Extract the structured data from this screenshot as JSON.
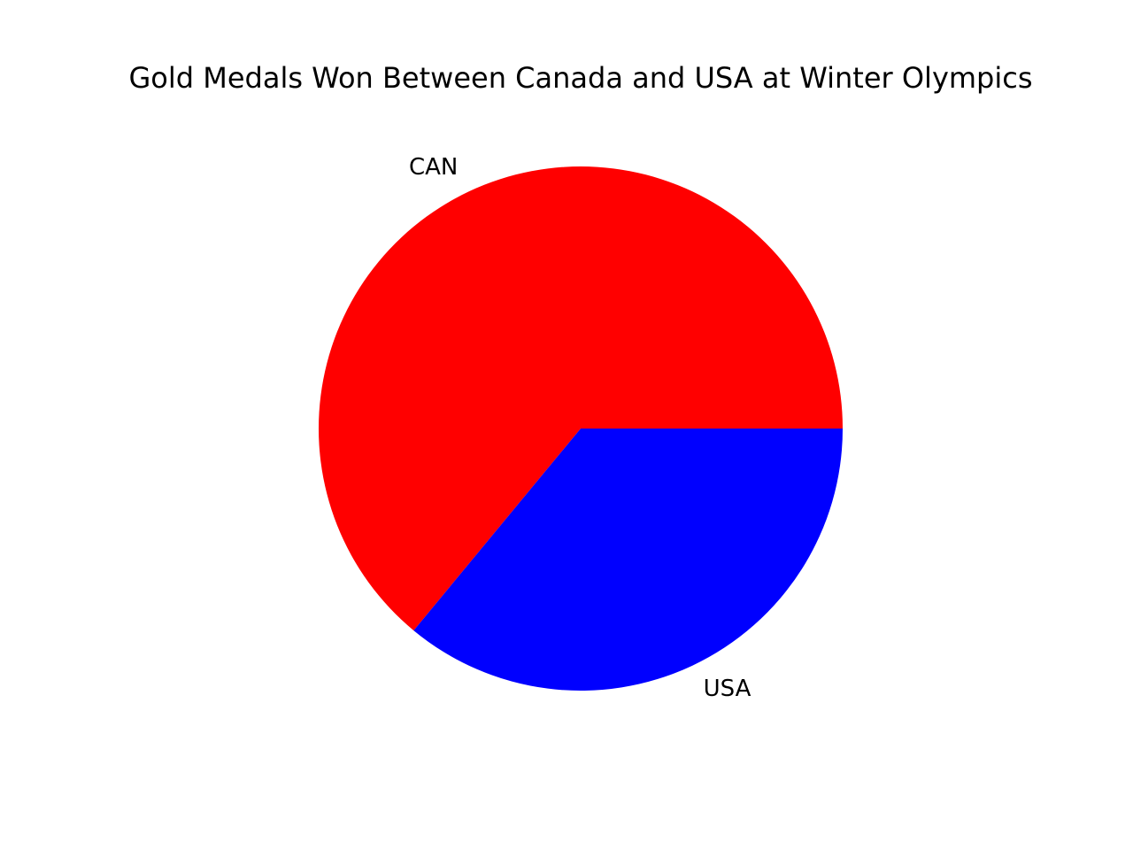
{
  "chart_data": {
    "type": "pie",
    "title": "Gold Medals Won Between Canada and USA at Winter Olympics",
    "categories": [
      "CAN",
      "USA"
    ],
    "values": [
      64,
      36
    ],
    "colors": [
      "#ff0000",
      "#0000ff"
    ],
    "start_angle_deg": 0,
    "direction": "counterclockwise",
    "legend": false
  }
}
